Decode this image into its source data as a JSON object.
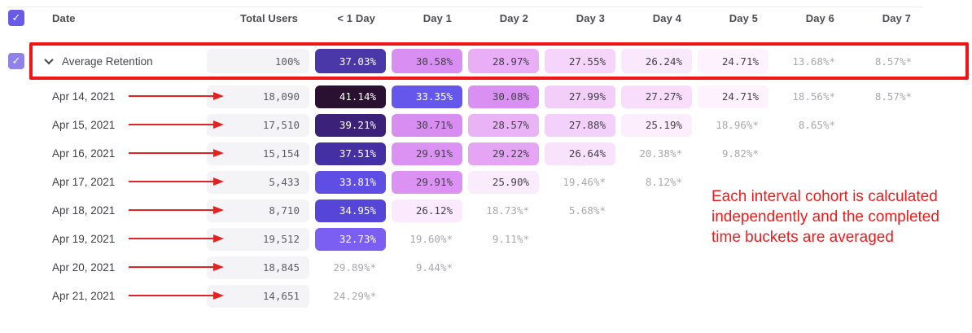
{
  "table": {
    "columns": [
      "Date",
      "Total Users",
      "< 1 Day",
      "Day 1",
      "Day 2",
      "Day 3",
      "Day 4",
      "Day 5",
      "Day 6",
      "Day 7"
    ],
    "average_row": {
      "label": "Average Retention",
      "total": "100%",
      "cells": [
        {
          "t": "37.03%",
          "bg": "#4a38a8",
          "fg": "#ffffff"
        },
        {
          "t": "30.58%",
          "bg": "#d98ff1"
        },
        {
          "t": "28.97%",
          "bg": "#e9aef6"
        },
        {
          "t": "27.55%",
          "bg": "#f5d6fa"
        },
        {
          "t": "26.24%",
          "bg": "#fae8fc"
        },
        {
          "t": "24.71%",
          "bg": "#fdf2fd"
        },
        {
          "t": "13.68%*"
        },
        {
          "t": "8.57%*"
        }
      ]
    },
    "rows": [
      {
        "date": "Apr 14, 2021",
        "total": "18,090",
        "cells": [
          {
            "t": "41.14%",
            "bg": "#2a1132",
            "fg": "#ffffff"
          },
          {
            "t": "33.35%",
            "bg": "#6556ec",
            "fg": "#ffffff"
          },
          {
            "t": "30.08%",
            "bg": "#da90f2"
          },
          {
            "t": "27.99%",
            "bg": "#f3cef9"
          },
          {
            "t": "27.27%",
            "bg": "#f8defb"
          },
          {
            "t": "24.71%",
            "bg": "#fdf2fd"
          },
          {
            "t": "18.56%*"
          },
          {
            "t": "8.57%*"
          }
        ]
      },
      {
        "date": "Apr 15, 2021",
        "total": "17,510",
        "cells": [
          {
            "t": "39.21%",
            "bg": "#3b2178",
            "fg": "#ffffff"
          },
          {
            "t": "30.71%",
            "bg": "#d88ef0"
          },
          {
            "t": "28.57%",
            "bg": "#eab3f6"
          },
          {
            "t": "27.88%",
            "bg": "#f4d1fa"
          },
          {
            "t": "25.19%",
            "bg": "#fceefd"
          },
          {
            "t": "18.96%*"
          },
          {
            "t": "8.65%*"
          }
        ]
      },
      {
        "date": "Apr 16, 2021",
        "total": "15,154",
        "cells": [
          {
            "t": "37.51%",
            "bg": "#442fa4",
            "fg": "#ffffff"
          },
          {
            "t": "29.91%",
            "bg": "#db92f2"
          },
          {
            "t": "29.22%",
            "bg": "#e6a4f5"
          },
          {
            "t": "26.64%",
            "bg": "#f9e3fc"
          },
          {
            "t": "20.38%*"
          },
          {
            "t": "9.82%*"
          }
        ]
      },
      {
        "date": "Apr 17, 2021",
        "total": "5,433",
        "cells": [
          {
            "t": "33.81%",
            "bg": "#5e4ee4",
            "fg": "#ffffff"
          },
          {
            "t": "29.91%",
            "bg": "#db92f2"
          },
          {
            "t": "25.90%",
            "bg": "#fbecfd"
          },
          {
            "t": "19.46%*"
          },
          {
            "t": "8.12%*"
          }
        ]
      },
      {
        "date": "Apr 18, 2021",
        "total": "8,710",
        "cells": [
          {
            "t": "34.95%",
            "bg": "#5646d8",
            "fg": "#ffffff"
          },
          {
            "t": "26.12%",
            "bg": "#fbeafd"
          },
          {
            "t": "18.73%*"
          },
          {
            "t": "5.68%*"
          }
        ]
      },
      {
        "date": "Apr 19, 2021",
        "total": "19,512",
        "cells": [
          {
            "t": "32.73%",
            "bg": "#7b5ef2",
            "fg": "#ffffff"
          },
          {
            "t": "19.60%*"
          },
          {
            "t": "9.11%*"
          }
        ]
      },
      {
        "date": "Apr 20, 2021",
        "total": "18,845",
        "cells": [
          {
            "t": "29.89%*"
          },
          {
            "t": "9.44%*"
          }
        ]
      },
      {
        "date": "Apr 21, 2021",
        "total": "14,651",
        "cells": [
          {
            "t": "24.29%*"
          }
        ]
      }
    ]
  },
  "annotation": {
    "text": "Each interval cohort is calculated independently and the completed time buckets are averaged",
    "color": "#ed1c1c"
  },
  "colors": {
    "checkbox": "#6a5ae8",
    "checkbox_light": "#8f83ea",
    "checkmark": "✓",
    "highlight_border": "#f01414",
    "arrow": "#e02424",
    "total_pill_bg": "#f4f4f6"
  }
}
